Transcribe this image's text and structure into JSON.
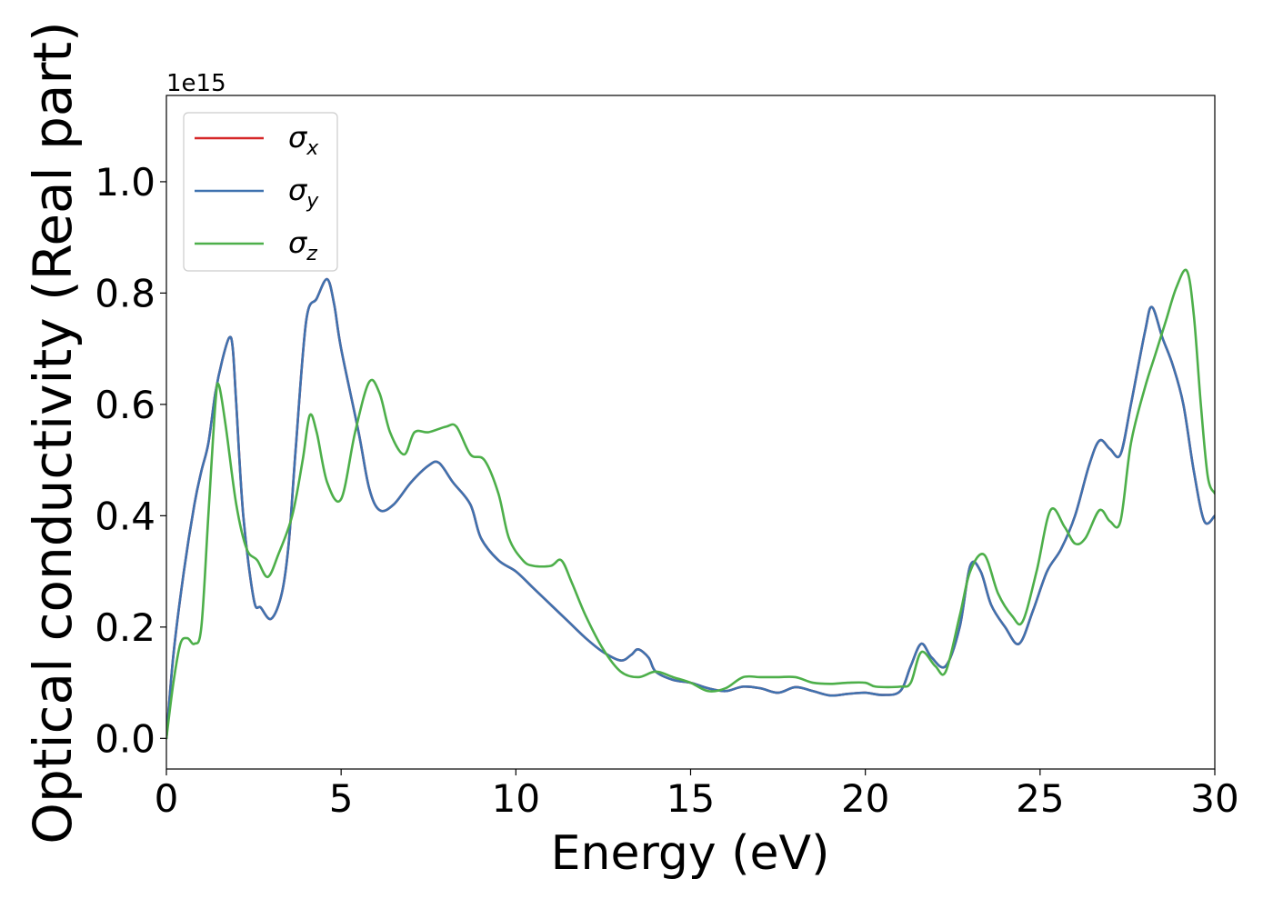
{
  "chart_data": {
    "type": "line",
    "xlabel": "Energy (eV)",
    "ylabel": "Optical conductivity (Real part)",
    "offset_label": "1e15",
    "xlim": [
      0,
      30
    ],
    "ylim": [
      -0.055,
      1.155
    ],
    "x_ticks": [
      0,
      5,
      10,
      15,
      20,
      25,
      30
    ],
    "y_ticks": [
      0.0,
      0.2,
      0.4,
      0.6,
      0.8,
      1.0
    ],
    "x_tick_labels": [
      "0",
      "5",
      "10",
      "15",
      "20",
      "25",
      "30"
    ],
    "y_tick_labels": [
      "0.0",
      "0.2",
      "0.4",
      "0.6",
      "0.8",
      "1.0"
    ],
    "grid": false,
    "legend_position": "top-left",
    "series": [
      {
        "name": "σx",
        "color": "#d62728",
        "points": [
          [
            0,
            0
          ],
          [
            0.2,
            0.15
          ],
          [
            0.5,
            0.3
          ],
          [
            0.8,
            0.42
          ],
          [
            1.0,
            0.48
          ],
          [
            1.2,
            0.53
          ],
          [
            1.4,
            0.62
          ],
          [
            1.6,
            0.68
          ],
          [
            1.8,
            0.72
          ],
          [
            1.9,
            0.7
          ],
          [
            2.0,
            0.6
          ],
          [
            2.2,
            0.4
          ],
          [
            2.5,
            0.25
          ],
          [
            2.7,
            0.235
          ],
          [
            3.0,
            0.215
          ],
          [
            3.3,
            0.26
          ],
          [
            3.5,
            0.35
          ],
          [
            3.7,
            0.52
          ],
          [
            4.0,
            0.75
          ],
          [
            4.3,
            0.79
          ],
          [
            4.6,
            0.825
          ],
          [
            4.8,
            0.78
          ],
          [
            5.0,
            0.7
          ],
          [
            5.5,
            0.55
          ],
          [
            5.8,
            0.45
          ],
          [
            6.1,
            0.41
          ],
          [
            6.5,
            0.42
          ],
          [
            7.0,
            0.46
          ],
          [
            7.5,
            0.49
          ],
          [
            7.8,
            0.495
          ],
          [
            8.2,
            0.46
          ],
          [
            8.7,
            0.42
          ],
          [
            9.0,
            0.36
          ],
          [
            9.5,
            0.32
          ],
          [
            10.0,
            0.3
          ],
          [
            10.5,
            0.27
          ],
          [
            11.0,
            0.24
          ],
          [
            11.5,
            0.21
          ],
          [
            12.0,
            0.18
          ],
          [
            12.5,
            0.155
          ],
          [
            13.0,
            0.14
          ],
          [
            13.3,
            0.15
          ],
          [
            13.5,
            0.16
          ],
          [
            13.8,
            0.145
          ],
          [
            14.0,
            0.12
          ],
          [
            14.5,
            0.105
          ],
          [
            15.0,
            0.1
          ],
          [
            15.5,
            0.09
          ],
          [
            16.0,
            0.085
          ],
          [
            16.5,
            0.093
          ],
          [
            17.0,
            0.09
          ],
          [
            17.5,
            0.082
          ],
          [
            18.0,
            0.092
          ],
          [
            18.5,
            0.085
          ],
          [
            19.0,
            0.077
          ],
          [
            19.5,
            0.08
          ],
          [
            20.0,
            0.082
          ],
          [
            20.5,
            0.078
          ],
          [
            21.0,
            0.085
          ],
          [
            21.3,
            0.13
          ],
          [
            21.6,
            0.17
          ],
          [
            21.9,
            0.145
          ],
          [
            22.3,
            0.13
          ],
          [
            22.7,
            0.2
          ],
          [
            23.0,
            0.31
          ],
          [
            23.3,
            0.3
          ],
          [
            23.6,
            0.24
          ],
          [
            24.0,
            0.2
          ],
          [
            24.4,
            0.17
          ],
          [
            24.8,
            0.23
          ],
          [
            25.2,
            0.3
          ],
          [
            25.6,
            0.34
          ],
          [
            26.0,
            0.4
          ],
          [
            26.4,
            0.49
          ],
          [
            26.7,
            0.535
          ],
          [
            27.0,
            0.52
          ],
          [
            27.3,
            0.51
          ],
          [
            27.6,
            0.6
          ],
          [
            28.0,
            0.73
          ],
          [
            28.2,
            0.775
          ],
          [
            28.5,
            0.72
          ],
          [
            28.8,
            0.67
          ],
          [
            29.1,
            0.6
          ],
          [
            29.4,
            0.48
          ],
          [
            29.7,
            0.39
          ],
          [
            30.0,
            0.4
          ]
        ]
      },
      {
        "name": "σy",
        "color": "#3f72af",
        "points": [
          [
            0,
            0
          ],
          [
            0.2,
            0.15
          ],
          [
            0.5,
            0.3
          ],
          [
            0.8,
            0.42
          ],
          [
            1.0,
            0.48
          ],
          [
            1.2,
            0.53
          ],
          [
            1.4,
            0.62
          ],
          [
            1.6,
            0.68
          ],
          [
            1.8,
            0.72
          ],
          [
            1.9,
            0.7
          ],
          [
            2.0,
            0.6
          ],
          [
            2.2,
            0.4
          ],
          [
            2.5,
            0.25
          ],
          [
            2.7,
            0.235
          ],
          [
            3.0,
            0.215
          ],
          [
            3.3,
            0.26
          ],
          [
            3.5,
            0.35
          ],
          [
            3.7,
            0.52
          ],
          [
            4.0,
            0.75
          ],
          [
            4.3,
            0.79
          ],
          [
            4.6,
            0.825
          ],
          [
            4.8,
            0.78
          ],
          [
            5.0,
            0.7
          ],
          [
            5.5,
            0.55
          ],
          [
            5.8,
            0.45
          ],
          [
            6.1,
            0.41
          ],
          [
            6.5,
            0.42
          ],
          [
            7.0,
            0.46
          ],
          [
            7.5,
            0.49
          ],
          [
            7.8,
            0.495
          ],
          [
            8.2,
            0.46
          ],
          [
            8.7,
            0.42
          ],
          [
            9.0,
            0.36
          ],
          [
            9.5,
            0.32
          ],
          [
            10.0,
            0.3
          ],
          [
            10.5,
            0.27
          ],
          [
            11.0,
            0.24
          ],
          [
            11.5,
            0.21
          ],
          [
            12.0,
            0.18
          ],
          [
            12.5,
            0.155
          ],
          [
            13.0,
            0.14
          ],
          [
            13.3,
            0.15
          ],
          [
            13.5,
            0.16
          ],
          [
            13.8,
            0.145
          ],
          [
            14.0,
            0.12
          ],
          [
            14.5,
            0.105
          ],
          [
            15.0,
            0.1
          ],
          [
            15.5,
            0.09
          ],
          [
            16.0,
            0.085
          ],
          [
            16.5,
            0.093
          ],
          [
            17.0,
            0.09
          ],
          [
            17.5,
            0.082
          ],
          [
            18.0,
            0.092
          ],
          [
            18.5,
            0.085
          ],
          [
            19.0,
            0.077
          ],
          [
            19.5,
            0.08
          ],
          [
            20.0,
            0.082
          ],
          [
            20.5,
            0.078
          ],
          [
            21.0,
            0.085
          ],
          [
            21.3,
            0.13
          ],
          [
            21.6,
            0.17
          ],
          [
            21.9,
            0.145
          ],
          [
            22.3,
            0.13
          ],
          [
            22.7,
            0.2
          ],
          [
            23.0,
            0.31
          ],
          [
            23.3,
            0.3
          ],
          [
            23.6,
            0.24
          ],
          [
            24.0,
            0.2
          ],
          [
            24.4,
            0.17
          ],
          [
            24.8,
            0.23
          ],
          [
            25.2,
            0.3
          ],
          [
            25.6,
            0.34
          ],
          [
            26.0,
            0.4
          ],
          [
            26.4,
            0.49
          ],
          [
            26.7,
            0.535
          ],
          [
            27.0,
            0.52
          ],
          [
            27.3,
            0.51
          ],
          [
            27.6,
            0.6
          ],
          [
            28.0,
            0.73
          ],
          [
            28.2,
            0.775
          ],
          [
            28.5,
            0.72
          ],
          [
            28.8,
            0.67
          ],
          [
            29.1,
            0.6
          ],
          [
            29.4,
            0.48
          ],
          [
            29.7,
            0.39
          ],
          [
            30.0,
            0.4
          ]
        ]
      },
      {
        "name": "σz",
        "color": "#4daf4a",
        "points": [
          [
            0,
            0
          ],
          [
            0.2,
            0.1
          ],
          [
            0.4,
            0.17
          ],
          [
            0.6,
            0.18
          ],
          [
            0.8,
            0.17
          ],
          [
            1.0,
            0.2
          ],
          [
            1.2,
            0.4
          ],
          [
            1.4,
            0.6
          ],
          [
            1.5,
            0.635
          ],
          [
            1.7,
            0.56
          ],
          [
            2.0,
            0.42
          ],
          [
            2.3,
            0.34
          ],
          [
            2.6,
            0.32
          ],
          [
            2.9,
            0.29
          ],
          [
            3.2,
            0.33
          ],
          [
            3.6,
            0.4
          ],
          [
            3.9,
            0.5
          ],
          [
            4.1,
            0.58
          ],
          [
            4.3,
            0.55
          ],
          [
            4.6,
            0.46
          ],
          [
            5.0,
            0.43
          ],
          [
            5.4,
            0.55
          ],
          [
            5.8,
            0.64
          ],
          [
            6.1,
            0.62
          ],
          [
            6.4,
            0.55
          ],
          [
            6.8,
            0.51
          ],
          [
            7.1,
            0.55
          ],
          [
            7.5,
            0.55
          ],
          [
            8.0,
            0.56
          ],
          [
            8.3,
            0.56
          ],
          [
            8.7,
            0.51
          ],
          [
            9.1,
            0.5
          ],
          [
            9.5,
            0.44
          ],
          [
            9.8,
            0.36
          ],
          [
            10.2,
            0.32
          ],
          [
            10.5,
            0.31
          ],
          [
            11.0,
            0.31
          ],
          [
            11.3,
            0.32
          ],
          [
            11.6,
            0.28
          ],
          [
            12.0,
            0.22
          ],
          [
            12.5,
            0.16
          ],
          [
            13.0,
            0.12
          ],
          [
            13.5,
            0.11
          ],
          [
            14.0,
            0.12
          ],
          [
            14.5,
            0.11
          ],
          [
            15.0,
            0.1
          ],
          [
            15.5,
            0.085
          ],
          [
            16.0,
            0.09
          ],
          [
            16.5,
            0.11
          ],
          [
            17.0,
            0.11
          ],
          [
            17.5,
            0.11
          ],
          [
            18.0,
            0.11
          ],
          [
            18.5,
            0.1
          ],
          [
            19.0,
            0.098
          ],
          [
            19.5,
            0.1
          ],
          [
            20.0,
            0.1
          ],
          [
            20.3,
            0.093
          ],
          [
            21.0,
            0.093
          ],
          [
            21.3,
            0.1
          ],
          [
            21.6,
            0.155
          ],
          [
            22.0,
            0.13
          ],
          [
            22.3,
            0.12
          ],
          [
            22.7,
            0.22
          ],
          [
            23.0,
            0.3
          ],
          [
            23.4,
            0.33
          ],
          [
            23.8,
            0.26
          ],
          [
            24.2,
            0.22
          ],
          [
            24.5,
            0.21
          ],
          [
            24.9,
            0.3
          ],
          [
            25.3,
            0.41
          ],
          [
            25.7,
            0.38
          ],
          [
            26.0,
            0.35
          ],
          [
            26.3,
            0.36
          ],
          [
            26.7,
            0.41
          ],
          [
            27.0,
            0.39
          ],
          [
            27.3,
            0.39
          ],
          [
            27.6,
            0.53
          ],
          [
            28.0,
            0.63
          ],
          [
            28.3,
            0.69
          ],
          [
            28.6,
            0.75
          ],
          [
            28.9,
            0.81
          ],
          [
            29.2,
            0.84
          ],
          [
            29.4,
            0.76
          ],
          [
            29.6,
            0.6
          ],
          [
            29.8,
            0.47
          ],
          [
            30.0,
            0.44
          ]
        ]
      }
    ]
  }
}
